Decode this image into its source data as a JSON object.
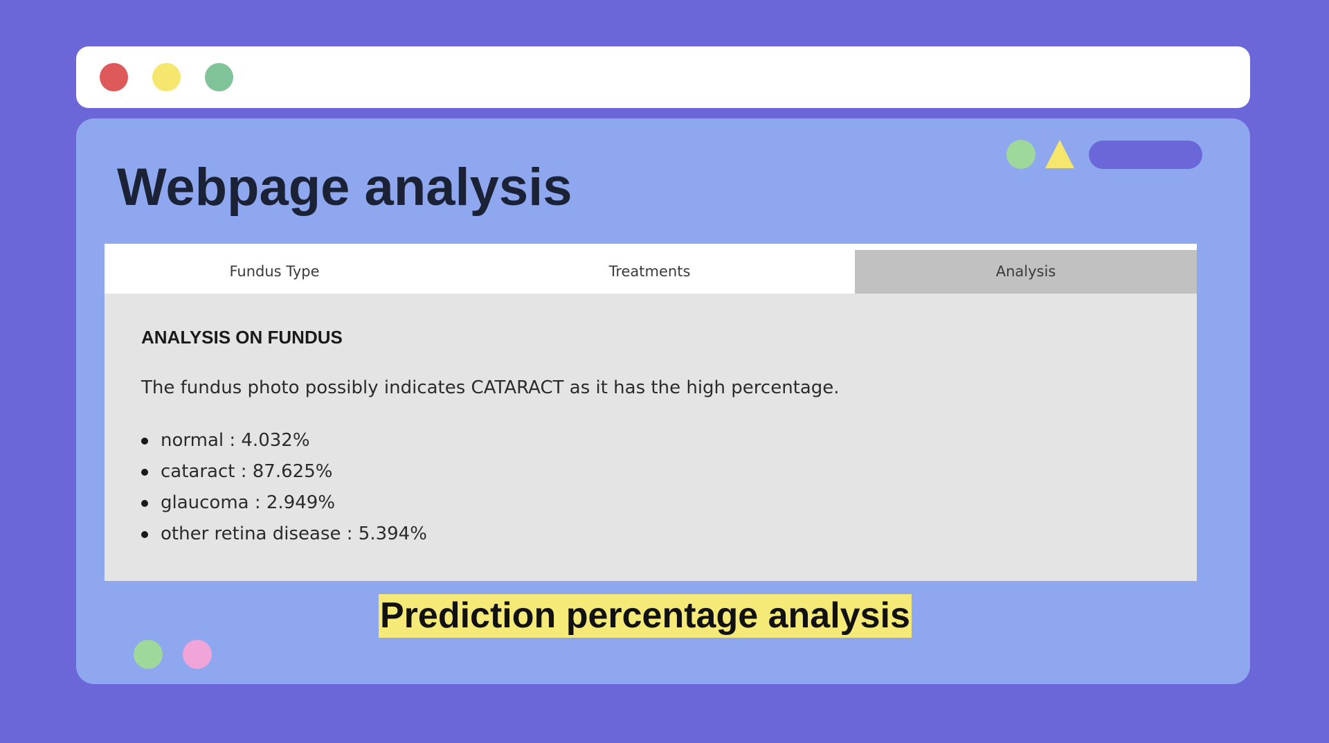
{
  "window_controls": {
    "close_color": "#de5a5a",
    "minimize_color": "#f5e76e",
    "maximize_color": "#80c398"
  },
  "page": {
    "title": "Webpage analysis",
    "caption": "Prediction percentage analysis"
  },
  "tabs": [
    {
      "label": "Fundus Type",
      "active": false
    },
    {
      "label": "Treatments",
      "active": false
    },
    {
      "label": "Analysis",
      "active": true
    }
  ],
  "analysis": {
    "heading": "ANALYSIS ON FUNDUS",
    "summary": "The fundus photo possibly indicates CATARACT as it has the high percentage.",
    "results": [
      "normal : 4.032%",
      "cataract : 87.625%",
      "glaucoma : 2.949%",
      "other retina disease : 5.394%"
    ]
  },
  "colors": {
    "background": "#6b67d9",
    "window_body": "#8ea7ef",
    "panel": "#e4e4e4",
    "active_tab": "#c1c1c1",
    "highlight": "#f5e978"
  }
}
